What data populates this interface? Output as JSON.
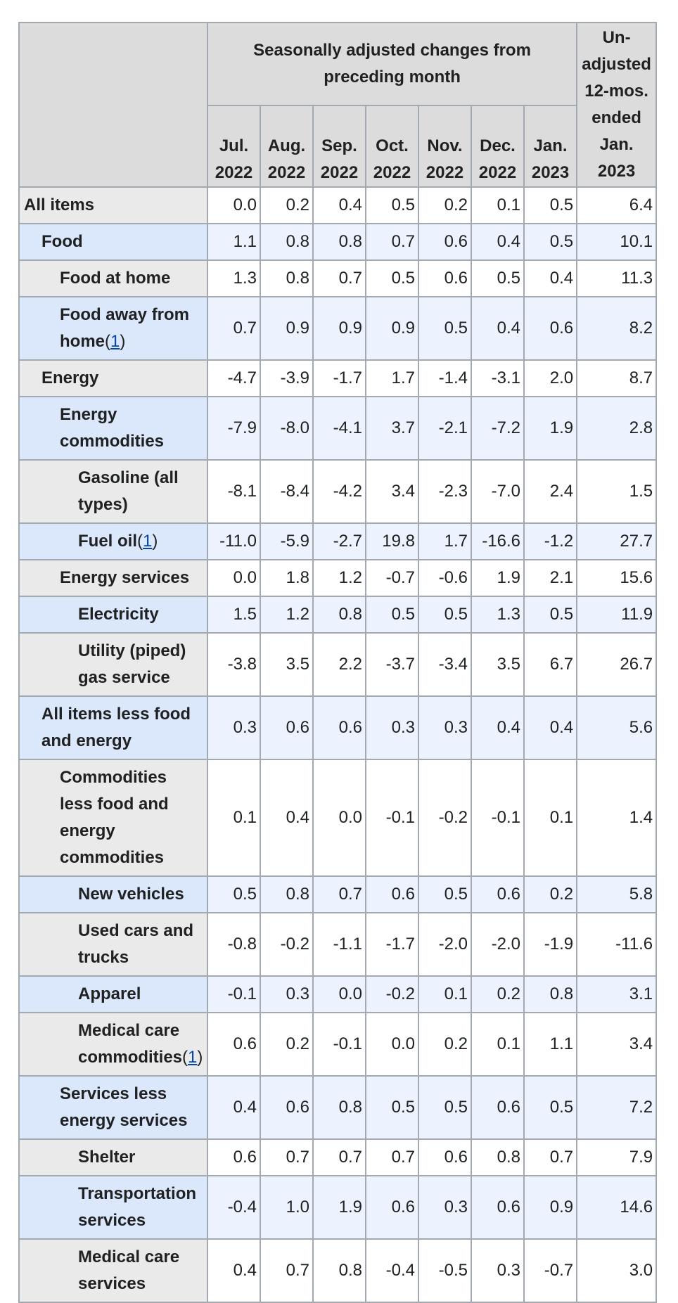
{
  "header": {
    "group_title": "Seasonally adjusted changes from preceding month",
    "unadjusted": "Un-adjusted 12-mos. ended Jan. 2023",
    "months": [
      "Jul. 2022",
      "Aug. 2022",
      "Sep. 2022",
      "Oct. 2022",
      "Nov. 2022",
      "Dec. 2022",
      "Jan. 2023"
    ]
  },
  "rows": [
    {
      "label": "All items",
      "level": 0,
      "values": [
        "0.0",
        "0.2",
        "0.4",
        "0.5",
        "0.2",
        "0.1",
        "0.5"
      ],
      "unadjusted": "6.4"
    },
    {
      "label": "Food",
      "level": 1,
      "values": [
        "1.1",
        "0.8",
        "0.8",
        "0.7",
        "0.6",
        "0.4",
        "0.5"
      ],
      "unadjusted": "10.1"
    },
    {
      "label": "Food at home",
      "level": 2,
      "values": [
        "1.3",
        "0.8",
        "0.7",
        "0.5",
        "0.6",
        "0.5",
        "0.4"
      ],
      "unadjusted": "11.3"
    },
    {
      "label": "Food away from home",
      "level": 2,
      "ref": "1",
      "values": [
        "0.7",
        "0.9",
        "0.9",
        "0.9",
        "0.5",
        "0.4",
        "0.6"
      ],
      "unadjusted": "8.2"
    },
    {
      "label": "Energy",
      "level": 1,
      "values": [
        "-4.7",
        "-3.9",
        "-1.7",
        "1.7",
        "-1.4",
        "-3.1",
        "2.0"
      ],
      "unadjusted": "8.7"
    },
    {
      "label": "Energy commodities",
      "level": 2,
      "values": [
        "-7.9",
        "-8.0",
        "-4.1",
        "3.7",
        "-2.1",
        "-7.2",
        "1.9"
      ],
      "unadjusted": "2.8"
    },
    {
      "label": "Gasoline (all types)",
      "level": 3,
      "values": [
        "-8.1",
        "-8.4",
        "-4.2",
        "3.4",
        "-2.3",
        "-7.0",
        "2.4"
      ],
      "unadjusted": "1.5"
    },
    {
      "label": "Fuel oil",
      "level": 3,
      "ref": "1",
      "values": [
        "-11.0",
        "-5.9",
        "-2.7",
        "19.8",
        "1.7",
        "-16.6",
        "-1.2"
      ],
      "unadjusted": "27.7"
    },
    {
      "label": "Energy services",
      "level": 2,
      "values": [
        "0.0",
        "1.8",
        "1.2",
        "-0.7",
        "-0.6",
        "1.9",
        "2.1"
      ],
      "unadjusted": "15.6"
    },
    {
      "label": "Electricity",
      "level": 3,
      "values": [
        "1.5",
        "1.2",
        "0.8",
        "0.5",
        "0.5",
        "1.3",
        "0.5"
      ],
      "unadjusted": "11.9"
    },
    {
      "label": "Utility (piped) gas service",
      "level": 3,
      "values": [
        "-3.8",
        "3.5",
        "2.2",
        "-3.7",
        "-3.4",
        "3.5",
        "6.7"
      ],
      "unadjusted": "26.7"
    },
    {
      "label": "All items less food and energy",
      "level": 1,
      "values": [
        "0.3",
        "0.6",
        "0.6",
        "0.3",
        "0.3",
        "0.4",
        "0.4"
      ],
      "unadjusted": "5.6"
    },
    {
      "label": "Commodities less food and energy commodities",
      "level": 2,
      "values": [
        "0.1",
        "0.4",
        "0.0",
        "-0.1",
        "-0.2",
        "-0.1",
        "0.1"
      ],
      "unadjusted": "1.4"
    },
    {
      "label": "New vehicles",
      "level": 3,
      "values": [
        "0.5",
        "0.8",
        "0.7",
        "0.6",
        "0.5",
        "0.6",
        "0.2"
      ],
      "unadjusted": "5.8"
    },
    {
      "label": "Used cars and trucks",
      "level": 3,
      "values": [
        "-0.8",
        "-0.2",
        "-1.1",
        "-1.7",
        "-2.0",
        "-2.0",
        "-1.9"
      ],
      "unadjusted": "-11.6"
    },
    {
      "label": "Apparel",
      "level": 3,
      "values": [
        "-0.1",
        "0.3",
        "0.0",
        "-0.2",
        "0.1",
        "0.2",
        "0.8"
      ],
      "unadjusted": "3.1"
    },
    {
      "label": "Medical care commodities",
      "level": 3,
      "ref": "1",
      "values": [
        "0.6",
        "0.2",
        "-0.1",
        "0.0",
        "0.2",
        "0.1",
        "1.1"
      ],
      "unadjusted": "3.4"
    },
    {
      "label": "Services less energy services",
      "level": 2,
      "values": [
        "0.4",
        "0.6",
        "0.8",
        "0.5",
        "0.5",
        "0.6",
        "0.5"
      ],
      "unadjusted": "7.2"
    },
    {
      "label": "Shelter",
      "level": 3,
      "values": [
        "0.6",
        "0.7",
        "0.7",
        "0.7",
        "0.6",
        "0.8",
        "0.7"
      ],
      "unadjusted": "7.9"
    },
    {
      "label": "Transportation services",
      "level": 3,
      "values": [
        "-0.4",
        "1.0",
        "1.9",
        "0.6",
        "0.3",
        "0.6",
        "0.9"
      ],
      "unadjusted": "14.6"
    },
    {
      "label": "Medical care services",
      "level": 3,
      "values": [
        "0.4",
        "0.7",
        "0.8",
        "-0.4",
        "-0.5",
        "0.3",
        "-0.7"
      ],
      "unadjusted": "3.0"
    }
  ]
}
